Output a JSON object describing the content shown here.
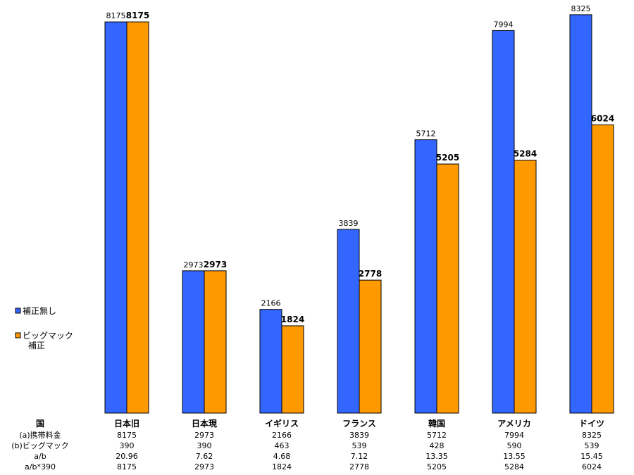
{
  "chart_data": {
    "type": "bar",
    "categories": [
      "日本旧",
      "日本現",
      "イギリス",
      "フランス",
      "韓国",
      "アメリカ",
      "ドイツ"
    ],
    "series": [
      {
        "name": "補正無し",
        "color": "#3366ff",
        "values": [
          8175,
          2973,
          2166,
          3839,
          5712,
          7994,
          8325
        ]
      },
      {
        "name": "ビッグマック補正",
        "color": "#ff9900",
        "values": [
          8175,
          2973,
          1824,
          2778,
          5205,
          5284,
          6024
        ]
      }
    ],
    "legend": {
      "position": "left",
      "items": [
        "補正無し",
        "ビッグマック\n補正"
      ]
    },
    "ylim": [
      0,
      8500
    ],
    "grid": false,
    "table": {
      "header_label": "国",
      "rows": [
        {
          "label": "(a)携帯料金",
          "values": [
            "8175",
            "2973",
            "2166",
            "3839",
            "5712",
            "7994",
            "8325"
          ]
        },
        {
          "label": "(b)ビッグマック",
          "values": [
            "390",
            "390",
            "463",
            "539",
            "428",
            "590",
            "539"
          ]
        },
        {
          "label": "a/b",
          "values": [
            "20.96",
            "7.62",
            "4.68",
            "7.12",
            "13.35",
            "13.55",
            "15.45"
          ]
        },
        {
          "label": "a/b*390",
          "values": [
            "8175",
            "2973",
            "1824",
            "2778",
            "5205",
            "5284",
            "6024"
          ]
        }
      ]
    }
  }
}
